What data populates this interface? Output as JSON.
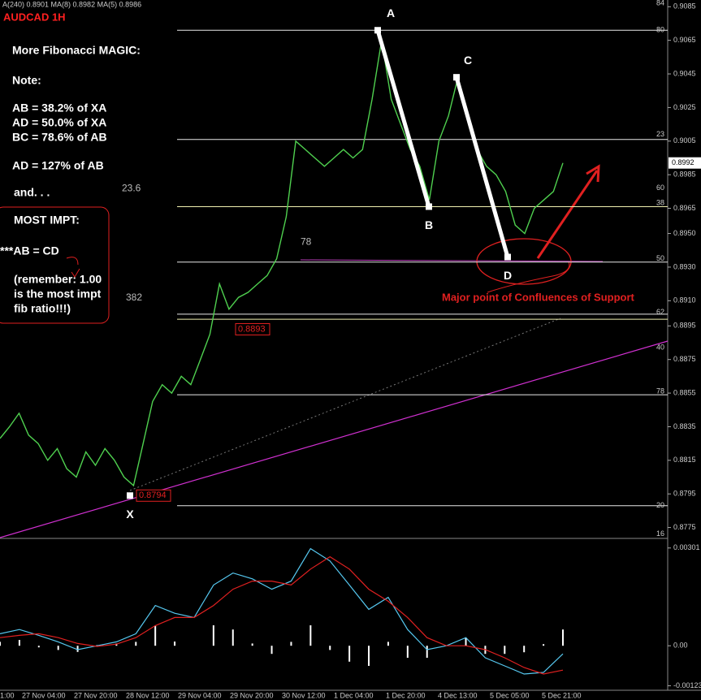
{
  "header": "A(240) 0.8901  MA(8) 0.8982  MA(5) 0.8986",
  "chart_data": [
    {
      "type": "line",
      "title": "AUDCAD 1H",
      "color": "#4fd04f",
      "ylim": [
        0.8769,
        0.9089
      ],
      "yticks": [
        0.9085,
        0.9065,
        0.9045,
        0.9025,
        0.9005,
        0.8985,
        0.8965,
        {
          "value": 0.895,
          "label": "0.8950"
        },
        {
          "value": 0.893,
          "label": "0.8930"
        },
        {
          "value": 0.891,
          "label": "0.8910"
        },
        0.8895,
        0.8875,
        0.8855,
        0.8835,
        0.8815,
        0.8795,
        0.8775
      ],
      "x_labels": [
        "1:00",
        "27 Nov 04:00",
        "27 Nov 20:00",
        "28 Nov 12:00",
        "29 Nov 04:00",
        "29 Nov 20:00",
        "30 Nov 12:00",
        "1 Dec 04:00",
        "1 Dec 20:00",
        "4 Dec 13:00",
        "5 Dec 05:00",
        "5 Dec 21:00"
      ],
      "values": [
        0.8828,
        0.8835,
        0.8843,
        0.883,
        0.8825,
        0.8815,
        0.8822,
        0.881,
        0.8805,
        0.882,
        0.8812,
        0.8822,
        0.8815,
        0.8805,
        0.88,
        0.8825,
        0.885,
        0.886,
        0.8855,
        0.8865,
        0.886,
        0.8875,
        0.889,
        0.892,
        0.8905,
        0.8912,
        0.8915,
        0.892,
        0.8925,
        0.8935,
        0.896,
        0.9005,
        0.9,
        0.8995,
        0.899,
        0.8995,
        0.9,
        0.8995,
        0.9,
        0.903,
        0.9065,
        0.903,
        0.9015,
        0.9,
        0.899,
        0.897,
        0.9005,
        0.902,
        0.9043,
        0.902,
        0.9,
        0.899,
        0.8985,
        0.8975,
        0.8955,
        0.895,
        0.8965,
        0.897,
        0.8975,
        0.8992
      ],
      "levels": [
        0.9071,
        0.9006,
        0.8966,
        0.8933,
        0.8902,
        0.8899,
        0.8854,
        0.8788
      ],
      "level_labels": [
        {
          "value": 0.9087,
          "label": "84"
        },
        {
          "value": 0.9071,
          "label": "80"
        },
        {
          "value": 0.9009,
          "label": "23"
        },
        {
          "value": 0.8977,
          "label": "60"
        },
        {
          "value": 0.8968,
          "label": "38"
        },
        {
          "value": 0.8935,
          "label": "50"
        },
        {
          "value": 0.8903,
          "label": "62"
        },
        {
          "value": 0.8882,
          "label": "40"
        },
        {
          "value": 0.8856,
          "label": "78"
        },
        {
          "value": 0.8788,
          "label": "20"
        },
        {
          "value": 0.8771,
          "label": "16"
        }
      ],
      "fib_labels": [
        {
          "value": 0.8971,
          "label": "23.6"
        },
        {
          "value": 0.8939,
          "label": "78"
        },
        {
          "value": 0.8906,
          "label": "382"
        }
      ],
      "points": [
        {
          "label": "X",
          "value": 0.8794
        },
        {
          "label": "A",
          "value": 0.9071
        },
        {
          "label": "B",
          "value": 0.8966
        },
        {
          "label": "C",
          "value": 0.9043
        },
        {
          "label": "D",
          "value": 0.8936
        }
      ],
      "price_tags": [
        0.8893,
        0.8794
      ],
      "last_price": 0.8992,
      "notes": [
        "More Fibonacci MAGIC:",
        "Note:",
        "AB = 38.2% of XA",
        "AD = 50.0% of XA",
        "BC = 78.6% of AB",
        "AD = 127% of AB",
        "and. . .",
        "MOST IMPT:",
        "***AB = CD",
        "(remember: 1.00",
        "is the most impt",
        "fib ratio!!!)"
      ],
      "callout": "Major point of Confluences of Support"
    },
    {
      "type": "line",
      "ylim": [
        -0.00132,
        0.00328
      ],
      "yticks": [
        0.00301,
        {
          "value": 0,
          "label": "0.00"
        },
        -0.00123
      ],
      "series": [
        {
          "color": "#56c8f0",
          "values": [
            0.00037,
            0.0005,
            0.00032,
            0.00012,
            -0.00012,
            0,
            0.00012,
            0.00037,
            0.00124,
            0.001,
            0.00087,
            0.00187,
            0.00224,
            0.00206,
            0.00174,
            0.00199,
            0.00299,
            0.00261,
            0.00187,
            0.00112,
            0.00149,
            0.0005,
            -0.00012,
            0,
            0.00025,
            -0.00037,
            -0.00062,
            -0.00087,
            -0.00082,
            -0.00025
          ]
        },
        {
          "color": "#e02020",
          "values": [
            0.00025,
            0.00032,
            0.00037,
            0.00025,
            7e-05,
            -2e-05,
            5e-05,
            0.00025,
            0.00062,
            0.00087,
            0.00087,
            0.00124,
            0.00174,
            0.00199,
            0.00199,
            0.00187,
            0.00236,
            0.00274,
            0.00236,
            0.00174,
            0.00137,
            0.00087,
            0.00025,
            0,
            0,
            -0.00012,
            -0.00037,
            -0.00067,
            -0.00087,
            -0.00075
          ]
        }
      ],
      "histogram": {
        "color": "#ffffff",
        "values": [
          0.00012,
          0.00018,
          -5e-05,
          -0.00013,
          -0.00019,
          2e-05,
          7e-05,
          0.00012,
          0.00062,
          0.00013,
          0,
          0.00063,
          0.0005,
          7e-05,
          -0.00025,
          0.00012,
          0.00063,
          -0.00013,
          -0.00049,
          -0.00062,
          0.00012,
          -0.00037,
          -0.00037,
          0,
          0.00025,
          -0.00025,
          -0.00025,
          -0.0002,
          5e-05,
          0.0005
        ]
      }
    }
  ]
}
